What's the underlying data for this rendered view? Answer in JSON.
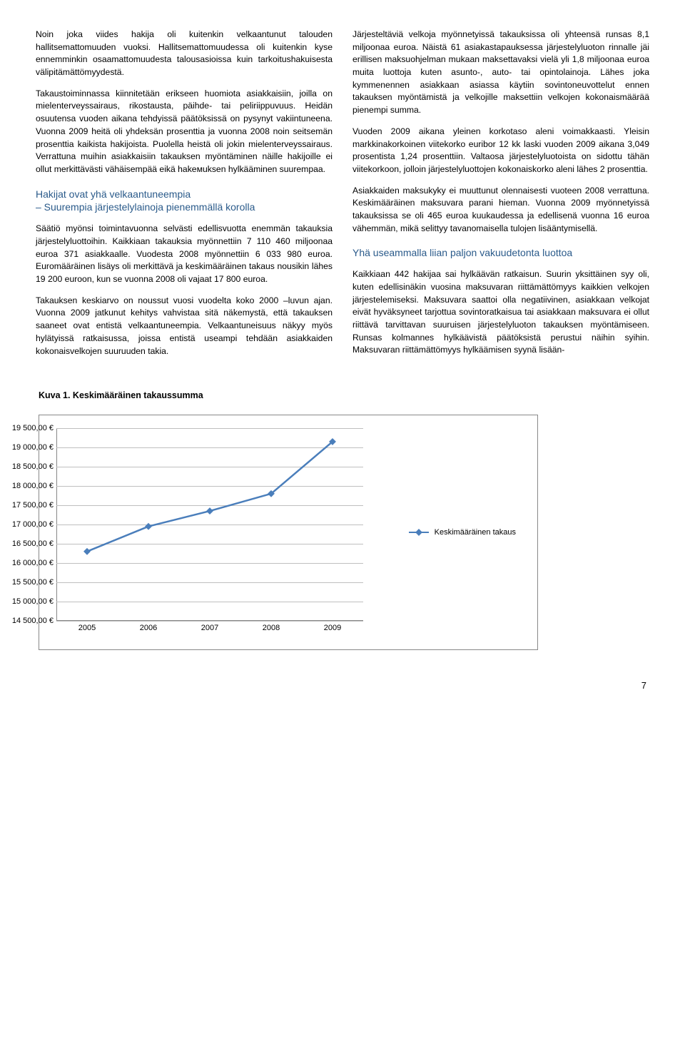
{
  "left": {
    "p1": "Noin joka viides hakija oli kuitenkin velkaantunut talouden hallitsemattomuuden vuoksi. Hallitsemattomuudessa oli kuitenkin kyse ennemminkin osaamattomuudesta talousasioissa kuin tarkoitushakuisesta välipitämättömyydestä.",
    "p2": "Takaustoiminnassa kiinnitetään erikseen huomiota asiakkaisiin, joilla on mielenterveyssairaus, rikostausta, päihde- tai peliriippuvuus. Heidän osuutensa vuoden aikana tehdyissä päätöksissä on pysynyt vakiintuneena. Vuonna 2009 heitä oli yhdeksän prosenttia ja vuonna 2008 noin seitsemän prosenttia kaikista hakijoista. Puolella heistä oli jokin mielenterveyssairaus. Verrattuna muihin asiakkaisiin takauksen myöntäminen näille hakijoille ei ollut merkittävästi vähäisempää eikä hakемuksen hylkääminen suurempaa.",
    "h1a": "Hakijat ovat yhä velkaantuneempia",
    "h1b": "– Suurempia järjestelylainoja pienemmällä korolla",
    "p3": "Säätiö myönsi toimintavuonna selvästi edellisvuotta enemmän takauksia järjestelyluottoihin. Kaikkiaan takauksia myönnettiin 7 110 460 miljoonaa euroa 371 asiakkaalle. Vuodesta 2008 myönnettiin 6 033 980 euroa. Euromääräinen lisäys oli merkittävä ja keskimääräinen takaus nousikin lähes 19 200 euroon, kun se vuonna 2008 oli vajaat 17 800 euroa.",
    "p4": "Takauksen keskiarvo on noussut vuosi vuodelta koko 2000 –luvun ajan. Vuonna 2009 jatkunut kehitys vahvistaa sitä näkemystä, että takauksen saaneet ovat entistä velkaantuneempia. Velkaantuneisuus näkyy myös hylätyissä ratkaisussa, joissa entistä useampi tehdään asiakkaiden kokonaisvelkojen suuruuden takia."
  },
  "right": {
    "p1": "Järjesteltäviä velkoja myönnetyissä takauksissa oli yhteensä runsas 8,1 miljoonaa euroa. Näistä 61 asiakastapauksessa järjestelyluoton rinnalle jäi erillisen maksuohjelman mukaan maksettavaksi vielä yli 1,8 miljoonaa euroa muita luottoja kuten asunto-, auto- tai opintolainoja. Lähes joka kymmenennen asiakkaan asiassa käytiin sovintoneuvottelut ennen takauksen myöntämistä ja velkojille maksettiin velkojen kokonaismäärää pienempi summa.",
    "p2": "Vuoden 2009 aikana yleinen korkotaso aleni voimakkaasti. Yleisin markkinakorkoinen viitekorko euribor 12 kk laski vuoden 2009 aikana 3,049 prosentista 1,24 prosenttiin. Valtaosa järjestelyluotoista on sidottu tähän viitekorkoon, jolloin järjestelyluottojen kokonaiskorko aleni lähes 2 prosenttia.",
    "p3": "Asiakkaiden maksukyky ei muuttunut olennaisesti vuoteen 2008 verrattuna. Keskimääräinen maksuvara parani hieman. Vuonna 2009 myönnetyissä takauksissa se oli 465 euroa kuukaudessa ja edellisenä vuonna 16 euroa vähemmän, mikä selittyy tavanomaisella tulojen lisääntymisellä.",
    "h2": "Yhä useammalla liian paljon vakuudetonta luottoa",
    "p4": "Kaikkiaan 442 hakijaa sai hylkäävän ratkaisun. Suurin yksittäinen syy oli, kuten edellisinäkin vuosina maksuvaran riittämättömyys kaikkien velkojen järjestelemiseksi. Maksuvara saattoi olla negatiivinen, asiakkaan velkojat eivät hyväksyneet tarjottua sovintoratkaisua tai asiakkaan maksuvara ei ollut riittävä tarvittavan suuruisen järjestelyluoton takauksen myöntämiseen. Runsas kolmannes hylkäävistä päätöksistä perustui näihin syihin. Maksuvaran riittämättömyys hylkäämisen syynä lisään-"
  },
  "chart": {
    "title": "Kuva 1. Keskimääräinen takaussumma",
    "type": "line",
    "x": [
      "2005",
      "2006",
      "2007",
      "2008",
      "2009"
    ],
    "y": [
      16300,
      16950,
      17350,
      17800,
      19150
    ],
    "y_ticks": [
      14500,
      15000,
      15500,
      16000,
      16500,
      17000,
      17500,
      18000,
      18500,
      19000,
      19500
    ],
    "y_tick_labels": [
      "14 500,00 €",
      "15 000,00 €",
      "15 500,00 €",
      "16 000,00 €",
      "16 500,00 €",
      "17 000,00 €",
      "17 500,00 €",
      "18 000,00 €",
      "18 500,00 €",
      "19 000,00 €",
      "19 500,00 €"
    ],
    "ymin": 14500,
    "ymax": 19500,
    "line_color": "#4a7ebb",
    "line_width": 2.5,
    "marker_color": "#4a7ebb",
    "marker_size": 7,
    "grid_color": "#bfbfbf",
    "border_color": "#888888",
    "background": "#ffffff",
    "legend_label": "Keskimääräinen takaus",
    "legend_position": "right",
    "axis_fontsize": 11
  },
  "page_number": "7"
}
